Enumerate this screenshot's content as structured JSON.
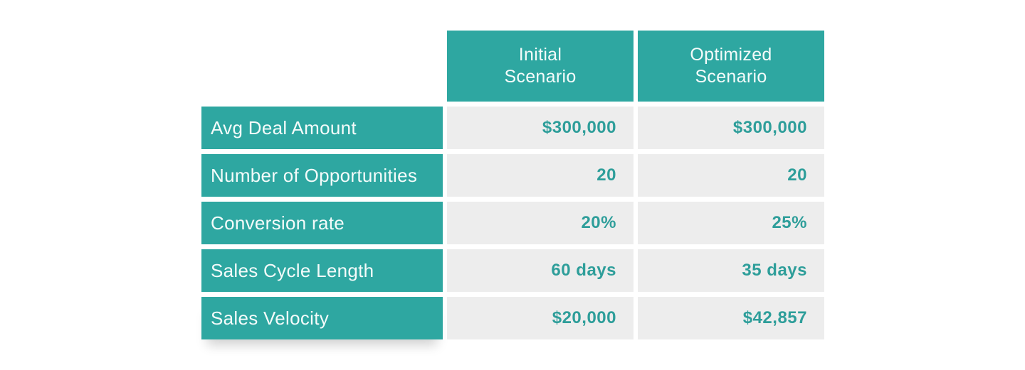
{
  "colors": {
    "teal": "#2EA7A1",
    "cell_gray": "#EDEDED",
    "value_text": "#2E9E9A",
    "header_text": "#F4FBFA"
  },
  "table": {
    "header": {
      "initial": {
        "line1": "Initial",
        "line2": "Scenario"
      },
      "optimized": {
        "line1": "Optimized",
        "line2": "Scenario"
      }
    }
  },
  "chart_data": {
    "type": "table",
    "columns": [
      "",
      "Initial Scenario",
      "Optimized Scenario"
    ],
    "rows": [
      [
        "Avg Deal Amount",
        "$300,000",
        "$300,000"
      ],
      [
        "Number of Opportunities",
        "20",
        "20"
      ],
      [
        "Conversion rate",
        "20%",
        "25%"
      ],
      [
        "Sales Cycle Length",
        "60 days",
        "35 days"
      ],
      [
        "Sales Velocity",
        "$20,000",
        "$42,857"
      ]
    ]
  }
}
